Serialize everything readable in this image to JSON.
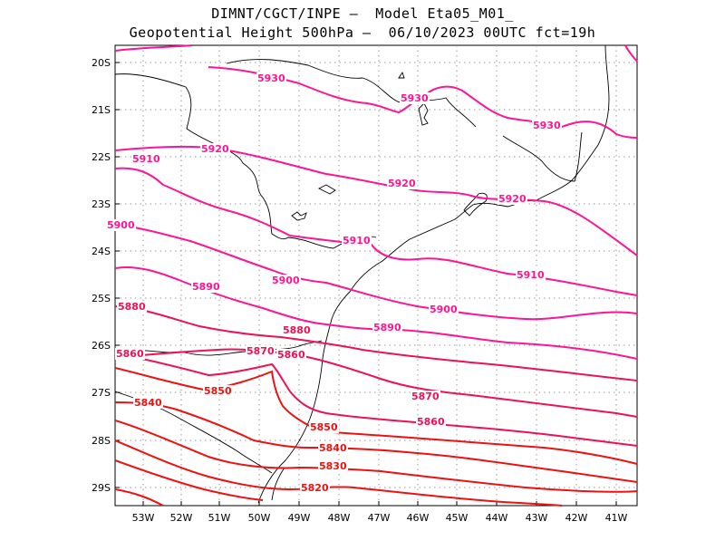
{
  "title": {
    "line1": "DIMNT/CGCT/INPE –  Model Eta05_M01_",
    "line2": "Geopotential Height 500hPa –  06/10/2023 00UTC fct=19h"
  },
  "lat_labels": [
    "20S",
    "21S",
    "22S",
    "23S",
    "24S",
    "25S",
    "26S",
    "27S",
    "28S",
    "29S"
  ],
  "lon_labels": [
    "53W",
    "52W",
    "51W",
    "50W",
    "49W",
    "48W",
    "47W",
    "46W",
    "45W",
    "44W",
    "43W",
    "42W",
    "41W"
  ],
  "colors": {
    "magenta": "#ff1493",
    "crimson": "#ee1155",
    "red": "#ee1111",
    "coast": "#000000",
    "grid": "#999999"
  },
  "contour_labels": [
    {
      "text": "5930",
      "color": "magenta"
    },
    {
      "text": "5930",
      "color": "magenta"
    },
    {
      "text": "5930",
      "color": "magenta"
    },
    {
      "text": "5920",
      "color": "magenta"
    },
    {
      "text": "5920",
      "color": "magenta"
    },
    {
      "text": "5920",
      "color": "magenta"
    },
    {
      "text": "5910",
      "color": "magenta"
    },
    {
      "text": "5910",
      "color": "magenta"
    },
    {
      "text": "5910",
      "color": "magenta"
    },
    {
      "text": "5900",
      "color": "magenta"
    },
    {
      "text": "5900",
      "color": "magenta"
    },
    {
      "text": "5900",
      "color": "magenta"
    },
    {
      "text": "5890",
      "color": "magenta"
    },
    {
      "text": "5890",
      "color": "magenta"
    },
    {
      "text": "5880",
      "color": "crimson"
    },
    {
      "text": "5880",
      "color": "crimson"
    },
    {
      "text": "5870",
      "color": "crimson"
    },
    {
      "text": "5870",
      "color": "crimson"
    },
    {
      "text": "5860",
      "color": "crimson"
    },
    {
      "text": "5860",
      "color": "crimson"
    },
    {
      "text": "5860",
      "color": "crimson"
    },
    {
      "text": "5850",
      "color": "red"
    },
    {
      "text": "5850",
      "color": "red"
    },
    {
      "text": "5840",
      "color": "red"
    },
    {
      "text": "5840",
      "color": "red"
    },
    {
      "text": "5830",
      "color": "red"
    },
    {
      "text": "5820",
      "color": "red"
    }
  ]
}
